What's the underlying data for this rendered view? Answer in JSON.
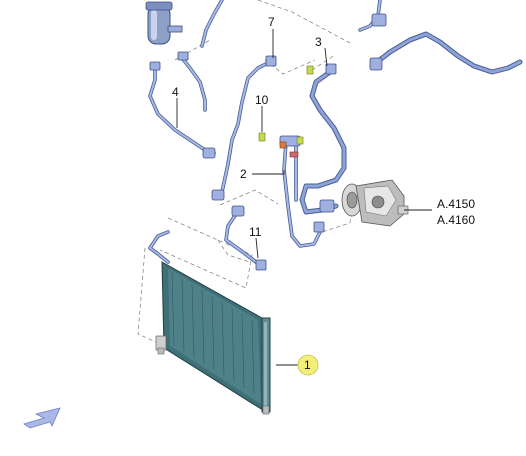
{
  "callouts": {
    "c1": "1",
    "c2": "2",
    "c3": "3",
    "c4": "4",
    "c7": "7",
    "c10": "10",
    "c11": "11"
  },
  "references": {
    "ref1": "A.4150",
    "ref2": "A.4160"
  },
  "colors": {
    "condenser": "#3f6f77",
    "hose": "#8fa3d8",
    "callout_highlight": "#f3f07a",
    "arrow": "#a9b8e8"
  },
  "icons": {
    "nav_arrow": "arrow-left-down-icon"
  }
}
